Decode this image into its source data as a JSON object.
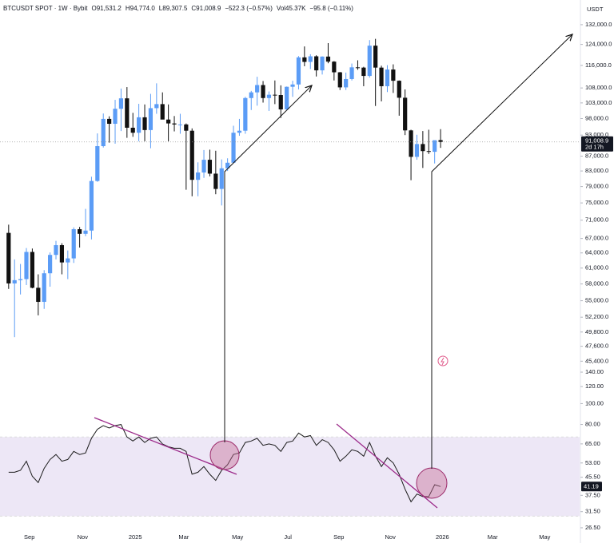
{
  "header": {
    "symbol": "BTCUSDT SPOT · 1W · Bybit",
    "open": "O91,531.2",
    "high": "H94,774.0",
    "low": "L89,307.5",
    "close": "C91,008.9",
    "change": "−522.3 (−0.57%)",
    "volume": "Vol45.37K",
    "volume_change": "−95.8 (−0.11%)",
    "currency": "USDT"
  },
  "chart_data": [
    {
      "type": "candlestick",
      "log_scale": true,
      "grid": false,
      "up_color": "#5b9cf6",
      "down_color": "#111111",
      "xlim": [
        -1.46,
        96.5
      ],
      "ylim": [
        44300,
        135700
      ],
      "yticks": [
        {
          "value": 132000,
          "label": "132,000.0"
        },
        {
          "value": 124000,
          "label": "124,000.0"
        },
        {
          "value": 116000,
          "label": "116,000.0"
        },
        {
          "value": 108000,
          "label": "108,000.0"
        },
        {
          "value": 103000,
          "label": "103,000.0"
        },
        {
          "value": 98000,
          "label": "98,000.0"
        },
        {
          "value": 93000,
          "label": "93,000.0"
        },
        {
          "value": 87000,
          "label": "87,000.0"
        },
        {
          "value": 83000,
          "label": "83,000.0"
        },
        {
          "value": 79000,
          "label": "79,000.0"
        },
        {
          "value": 75000,
          "label": "75,000.0"
        },
        {
          "value": 71000,
          "label": "71,000.0"
        },
        {
          "value": 67000,
          "label": "67,000.0"
        },
        {
          "value": 64000,
          "label": "64,000.0"
        },
        {
          "value": 61000,
          "label": "61,000.0"
        },
        {
          "value": 58000,
          "label": "58,000.0"
        },
        {
          "value": 55000,
          "label": "55,000.0"
        },
        {
          "value": 52200,
          "label": "52,200.0"
        },
        {
          "value": 49800,
          "label": "49,800.0"
        },
        {
          "value": 47600,
          "label": "47,600.0"
        },
        {
          "value": 45400,
          "label": "45,400.0"
        }
      ],
      "last_label": "91,008.9",
      "countdown": "2d 17h",
      "open": [
        68200,
        58100,
        58700,
        58900,
        64200,
        57300,
        54800,
        60000,
        63600,
        65600,
        62100,
        62900,
        69000,
        68000,
        68700,
        80400,
        89800,
        97900,
        96400,
        101100,
        104500,
        95200,
        93700,
        98400,
        94500,
        101300,
        102600,
        97700,
        96500,
        96200,
        96200,
        94300,
        80700,
        82600,
        86000,
        82300,
        78400,
        83700,
        85200,
        93700,
        94300,
        104600,
        106500,
        109000,
        104600,
        105700,
        105600,
        100900,
        108400,
        109200,
        119000,
        117300,
        119400,
        114200,
        119300,
        117400,
        113500,
        108200,
        111100,
        115300,
        115200,
        112200,
        123500,
        115200,
        108600,
        114500,
        110500,
        104700,
        94400,
        86800,
        90400,
        88400,
        88200,
        91531.2
      ],
      "high": [
        70000,
        62700,
        61800,
        65000,
        64900,
        59800,
        60600,
        64100,
        66500,
        66000,
        64500,
        69400,
        69500,
        73600,
        81500,
        93500,
        99600,
        98700,
        104000,
        107800,
        108300,
        99800,
        102700,
        102500,
        106000,
        109600,
        106500,
        102500,
        98800,
        99500,
        96500,
        95000,
        85300,
        88700,
        88800,
        88500,
        86100,
        86400,
        95800,
        97900,
        105000,
        107000,
        111900,
        110400,
        106800,
        110600,
        108900,
        108500,
        110500,
        119500,
        123200,
        120200,
        119800,
        119400,
        124500,
        117600,
        113600,
        113400,
        116700,
        117900,
        115500,
        125700,
        126200,
        115900,
        116100,
        116400,
        110600,
        107500,
        94600,
        93100,
        94200,
        94600,
        90800,
        94774.0
      ],
      "low": [
        57100,
        49000,
        56100,
        57800,
        57200,
        52500,
        53600,
        57500,
        62700,
        59800,
        58900,
        62000,
        65100,
        67500,
        66800,
        80200,
        89400,
        90800,
        90500,
        94200,
        92200,
        92500,
        91200,
        91200,
        89200,
        99500,
        97800,
        91200,
        94100,
        93400,
        78200,
        76600,
        76600,
        81200,
        81600,
        77100,
        74400,
        83000,
        85100,
        92800,
        93400,
        100700,
        102100,
        103100,
        100400,
        102600,
        98200,
        100800,
        105000,
        107500,
        115700,
        114700,
        112000,
        112700,
        116800,
        110600,
        107300,
        107300,
        110600,
        114400,
        108600,
        111600,
        102000,
        103500,
        106600,
        106300,
        98900,
        93000,
        80600,
        86000,
        83800,
        87600,
        85000,
        89307.5
      ],
      "close": [
        58100,
        58700,
        58900,
        64200,
        57300,
        54800,
        60000,
        63600,
        65600,
        62100,
        62900,
        69000,
        68000,
        68700,
        80400,
        89800,
        97900,
        96400,
        101100,
        104500,
        95200,
        93700,
        98400,
        94500,
        101300,
        102600,
        97700,
        96500,
        96200,
        96200,
        94300,
        80700,
        82600,
        86000,
        82300,
        78400,
        83700,
        85200,
        93700,
        94300,
        104600,
        106500,
        109000,
        104600,
        105700,
        105600,
        100900,
        108400,
        109200,
        119000,
        117300,
        119400,
        114200,
        119300,
        117400,
        113500,
        108200,
        111100,
        115300,
        115200,
        112200,
        123500,
        115200,
        108600,
        114500,
        110500,
        104700,
        94400,
        86800,
        90400,
        88400,
        88200,
        91500,
        91008.9
      ]
    },
    {
      "type": "line",
      "log_scale": true,
      "color": "#1a1a1a",
      "band": [
        30,
        70
      ],
      "band_color": "#ede7f6",
      "xlim": [
        -1.46,
        96.5
      ],
      "ylim": [
        25.6,
        144.9
      ],
      "yticks": [
        {
          "value": 140,
          "label": "140.00"
        },
        {
          "value": 120,
          "label": "120.00"
        },
        {
          "value": 100,
          "label": "100.00"
        },
        {
          "value": 80,
          "label": "80.00"
        },
        {
          "value": 65,
          "label": "65.00"
        },
        {
          "value": 53,
          "label": "53.00"
        },
        {
          "value": 45.5,
          "label": "45.50"
        },
        {
          "value": 37.5,
          "label": "37.50"
        },
        {
          "value": 31.5,
          "label": "31.50"
        },
        {
          "value": 26.5,
          "label": "26.50"
        }
      ],
      "xticks": [
        {
          "value": 3.5,
          "label": "Sep"
        },
        {
          "value": 12.5,
          "label": "Nov"
        },
        {
          "value": 21.4,
          "label": "2025"
        },
        {
          "value": 29.6,
          "label": "Mar"
        },
        {
          "value": 38.7,
          "label": "May"
        },
        {
          "value": 47.2,
          "label": "Jul"
        },
        {
          "value": 55.8,
          "label": "Sep"
        },
        {
          "value": 64.5,
          "label": "Nov"
        },
        {
          "value": 73.3,
          "label": "2026"
        },
        {
          "value": 81.8,
          "label": "Mar"
        },
        {
          "value": 90.6,
          "label": "May"
        }
      ],
      "values": [
        48,
        48,
        49,
        54,
        46,
        43,
        50,
        55,
        58,
        54,
        55,
        60,
        58,
        59,
        69,
        76,
        79,
        77,
        79,
        80,
        70,
        67,
        70,
        66,
        69,
        70,
        65,
        63,
        62,
        62,
        60,
        47,
        48,
        51,
        47,
        44,
        49,
        52,
        58,
        59,
        66,
        67,
        69,
        64,
        65,
        64,
        60,
        66,
        67,
        73,
        70,
        71,
        64,
        68,
        66,
        61,
        54,
        57,
        61,
        60,
        57,
        66,
        57,
        51,
        56,
        53,
        47,
        40,
        35,
        38,
        37,
        37,
        42,
        41.19
      ]
    }
  ]
}
